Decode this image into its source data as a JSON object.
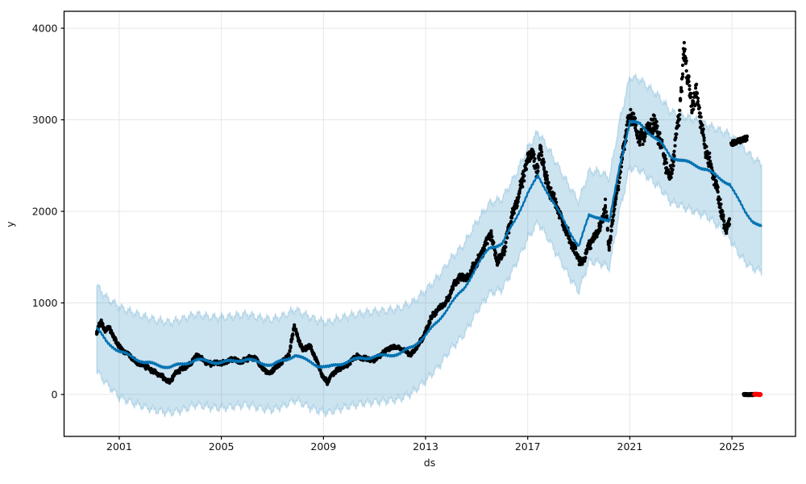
{
  "figure": {
    "background": "#ffffff",
    "title": ""
  },
  "chart_data": {
    "type": "scatter+line+area (time-series forecast with uncertainty band)",
    "title": "",
    "xlabel": "ds",
    "ylabel": "y",
    "legend": "none",
    "axes": {
      "x": {
        "ticks": [
          2001,
          2005,
          2009,
          2013,
          2017,
          2021,
          2025
        ],
        "min": 1998.84,
        "max": 2027.49,
        "grid": true
      },
      "y": {
        "ticks": [
          0,
          1000,
          2000,
          3000,
          4000
        ],
        "min": -458,
        "max": 4185,
        "grid": true
      }
    },
    "colors": {
      "forecast_line": "#0072B2",
      "uncertainty_band": "rgba(0,114,178,0.2)",
      "band_edge": "rgba(0,114,178,0.18)",
      "actual_points": "#000000",
      "flagged_points": "#ff0000",
      "grid": "#e7e7e7",
      "spine": "#000000"
    },
    "series": {
      "forecast": {
        "name": "forecast yhat with uncertainty interval",
        "points_format": [
          "year",
          "lower",
          "yhat",
          "upper"
        ],
        "points": [
          [
            2000.12,
            250,
            720,
            1190
          ],
          [
            2000.5,
            120,
            580,
            1060
          ],
          [
            2001.0,
            -30,
            470,
            960
          ],
          [
            2001.5,
            -90,
            410,
            900
          ],
          [
            2002.0,
            -140,
            350,
            850
          ],
          [
            2002.5,
            -180,
            320,
            810
          ],
          [
            2003.0,
            -200,
            300,
            790
          ],
          [
            2003.5,
            -170,
            330,
            830
          ],
          [
            2004.0,
            -110,
            380,
            880
          ],
          [
            2004.5,
            -140,
            360,
            850
          ],
          [
            2005.0,
            -150,
            350,
            840
          ],
          [
            2005.5,
            -130,
            365,
            860
          ],
          [
            2006.0,
            -110,
            385,
            880
          ],
          [
            2006.5,
            -150,
            345,
            840
          ],
          [
            2007.0,
            -170,
            325,
            820
          ],
          [
            2007.5,
            -120,
            375,
            870
          ],
          [
            2007.9,
            -60,
            435,
            930
          ],
          [
            2008.3,
            -120,
            375,
            870
          ],
          [
            2008.8,
            -180,
            315,
            810
          ],
          [
            2009.2,
            -200,
            295,
            790
          ],
          [
            2009.6,
            -160,
            330,
            830
          ],
          [
            2010.0,
            -130,
            365,
            860
          ],
          [
            2010.5,
            -100,
            395,
            890
          ],
          [
            2011.0,
            -80,
            415,
            910
          ],
          [
            2011.5,
            -70,
            425,
            920
          ],
          [
            2012.0,
            -50,
            450,
            945
          ],
          [
            2012.5,
            20,
            520,
            1010
          ],
          [
            2013.0,
            150,
            650,
            1140
          ],
          [
            2013.5,
            300,
            800,
            1290
          ],
          [
            2014.0,
            500,
            1000,
            1490
          ],
          [
            2014.5,
            650,
            1150,
            1640
          ],
          [
            2015.0,
            900,
            1400,
            1890
          ],
          [
            2015.5,
            1100,
            1600,
            2090
          ],
          [
            2016.0,
            1150,
            1650,
            2140
          ],
          [
            2016.5,
            1400,
            1900,
            2390
          ],
          [
            2017.0,
            1700,
            2200,
            2690
          ],
          [
            2017.4,
            1880,
            2380,
            2870
          ],
          [
            2017.8,
            1700,
            2200,
            2690
          ],
          [
            2018.2,
            1500,
            2000,
            2490
          ],
          [
            2018.6,
            1300,
            1800,
            2290
          ],
          [
            2019.0,
            1120,
            1620,
            2110
          ],
          [
            2019.4,
            1450,
            1950,
            2440
          ],
          [
            2019.8,
            1440,
            1940,
            2430
          ],
          [
            2020.2,
            1380,
            1880,
            2370
          ],
          [
            2020.6,
            2000,
            2500,
            2990
          ],
          [
            2021.0,
            2480,
            2980,
            3470
          ],
          [
            2021.4,
            2450,
            2950,
            3440
          ],
          [
            2021.8,
            2350,
            2850,
            3340
          ],
          [
            2022.2,
            2250,
            2750,
            3240
          ],
          [
            2022.6,
            2100,
            2600,
            3090
          ],
          [
            2023.0,
            2060,
            2560,
            3050
          ],
          [
            2023.5,
            2000,
            2510,
            3010
          ],
          [
            2024.0,
            1950,
            2460,
            2950
          ],
          [
            2024.5,
            1830,
            2360,
            2890
          ],
          [
            2024.92,
            1700,
            2300,
            2840
          ],
          [
            2025.2,
            1560,
            2150,
            2760
          ],
          [
            2025.5,
            1450,
            2000,
            2680
          ],
          [
            2025.8,
            1380,
            1900,
            2590
          ],
          [
            2026.0,
            1360,
            1860,
            2545
          ],
          [
            2026.16,
            1345,
            1830,
            2530
          ]
        ]
      },
      "actual": {
        "name": "observed y (dense black scatter, anchor means)",
        "points_format": [
          "year",
          "value"
        ],
        "points": [
          [
            2000.12,
            660
          ],
          [
            2000.2,
            750
          ],
          [
            2000.3,
            790
          ],
          [
            2000.45,
            700
          ],
          [
            2000.6,
            730
          ],
          [
            2000.8,
            620
          ],
          [
            2001.0,
            530
          ],
          [
            2001.2,
            460
          ],
          [
            2001.5,
            400
          ],
          [
            2001.8,
            330
          ],
          [
            2002.1,
            290
          ],
          [
            2002.4,
            250
          ],
          [
            2002.7,
            185
          ],
          [
            2002.95,
            145
          ],
          [
            2003.2,
            225
          ],
          [
            2003.5,
            285
          ],
          [
            2003.8,
            345
          ],
          [
            2004.05,
            420
          ],
          [
            2004.3,
            380
          ],
          [
            2004.6,
            330
          ],
          [
            2004.9,
            345
          ],
          [
            2005.2,
            355
          ],
          [
            2005.5,
            385
          ],
          [
            2005.8,
            360
          ],
          [
            2006.1,
            390
          ],
          [
            2006.35,
            410
          ],
          [
            2006.6,
            285
          ],
          [
            2006.85,
            220
          ],
          [
            2007.1,
            300
          ],
          [
            2007.4,
            350
          ],
          [
            2007.65,
            430
          ],
          [
            2007.85,
            760
          ],
          [
            2008.0,
            610
          ],
          [
            2008.2,
            480
          ],
          [
            2008.45,
            550
          ],
          [
            2008.7,
            380
          ],
          [
            2008.95,
            210
          ],
          [
            2009.15,
            145
          ],
          [
            2009.4,
            225
          ],
          [
            2009.7,
            300
          ],
          [
            2010.0,
            335
          ],
          [
            2010.3,
            420
          ],
          [
            2010.6,
            395
          ],
          [
            2010.9,
            365
          ],
          [
            2011.2,
            425
          ],
          [
            2011.5,
            480
          ],
          [
            2011.8,
            540
          ],
          [
            2012.1,
            480
          ],
          [
            2012.4,
            440
          ],
          [
            2012.7,
            530
          ],
          [
            2012.95,
            650
          ],
          [
            2013.2,
            840
          ],
          [
            2013.5,
            920
          ],
          [
            2013.8,
            1020
          ],
          [
            2014.1,
            1180
          ],
          [
            2014.4,
            1300
          ],
          [
            2014.7,
            1270
          ],
          [
            2015.0,
            1450
          ],
          [
            2015.3,
            1620
          ],
          [
            2015.55,
            1750
          ],
          [
            2015.8,
            1460
          ],
          [
            2016.1,
            1580
          ],
          [
            2016.4,
            1980
          ],
          [
            2016.7,
            2230
          ],
          [
            2017.0,
            2520
          ],
          [
            2017.15,
            2690
          ],
          [
            2017.35,
            2440
          ],
          [
            2017.5,
            2640
          ],
          [
            2017.7,
            2380
          ],
          [
            2018.0,
            2150
          ],
          [
            2018.3,
            1900
          ],
          [
            2018.6,
            1750
          ],
          [
            2018.9,
            1520
          ],
          [
            2019.1,
            1420
          ],
          [
            2019.35,
            1600
          ],
          [
            2019.6,
            1700
          ],
          [
            2019.85,
            1850
          ],
          [
            2020.05,
            2100
          ],
          [
            2020.18,
            1550
          ],
          [
            2020.35,
            1950
          ],
          [
            2020.55,
            2350
          ],
          [
            2020.75,
            2700
          ],
          [
            2020.95,
            2950
          ],
          [
            2021.1,
            3050
          ],
          [
            2021.3,
            2900
          ],
          [
            2021.5,
            2760
          ],
          [
            2021.7,
            2870
          ],
          [
            2021.95,
            3000
          ],
          [
            2022.15,
            2800
          ],
          [
            2022.35,
            2550
          ],
          [
            2022.55,
            2380
          ],
          [
            2022.75,
            2650
          ],
          [
            2022.95,
            3050
          ],
          [
            2023.14,
            3800
          ],
          [
            2023.3,
            3450
          ],
          [
            2023.45,
            3150
          ],
          [
            2023.6,
            3280
          ],
          [
            2023.8,
            2950
          ],
          [
            2024.0,
            2700
          ],
          [
            2024.2,
            2450
          ],
          [
            2024.4,
            2250
          ],
          [
            2024.6,
            2000
          ],
          [
            2024.75,
            1800
          ],
          [
            2024.92,
            1900
          ]
        ]
      },
      "recent_cluster": {
        "name": "detached recent observations",
        "start": 2024.97,
        "end": 2025.6,
        "value_start": 2740,
        "value_end": 2800
      },
      "zeros_black": {
        "name": "trailing zero-valued observations (black)",
        "start": 2025.47,
        "end": 2025.93,
        "value": 0
      },
      "zeros_red": {
        "name": "trailing zero-valued flagged points (red)",
        "start": 2025.89,
        "end": 2026.11,
        "value": 0
      }
    },
    "render_hints": {
      "band_jag_amp1": 40,
      "band_jag_period1": 0.3,
      "band_jag_amp2": 22,
      "band_jag_period2": 0.085,
      "line_wiggle_amp": 14,
      "dot_radius": 2.1,
      "scatter_sigma_min": 26,
      "scatter_sigma_rel": 0.038
    }
  }
}
